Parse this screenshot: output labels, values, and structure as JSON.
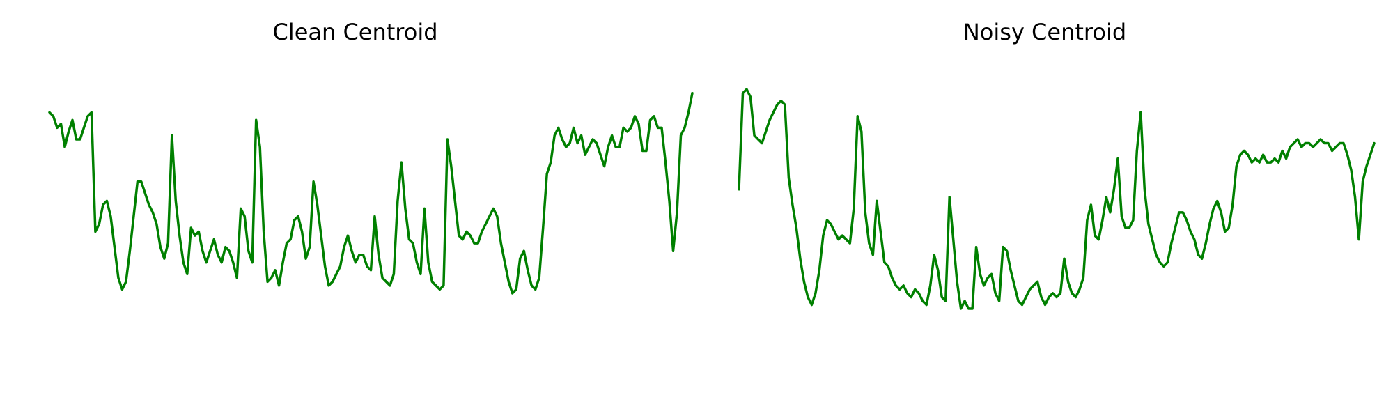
{
  "chart_data": [
    {
      "type": "line",
      "title": "Clean Centroid",
      "xlabel": "",
      "ylabel": "",
      "grid": false,
      "axes_visible": false,
      "color": "#008000",
      "xlim": [
        0,
        160
      ],
      "ylim": [
        0.18,
        1.0
      ],
      "y": [
        0.88,
        0.87,
        0.84,
        0.85,
        0.79,
        0.83,
        0.86,
        0.81,
        0.81,
        0.84,
        0.87,
        0.88,
        0.57,
        0.59,
        0.64,
        0.65,
        0.61,
        0.53,
        0.45,
        0.42,
        0.44,
        0.52,
        0.61,
        0.7,
        0.7,
        0.67,
        0.64,
        0.62,
        0.59,
        0.53,
        0.5,
        0.54,
        0.82,
        0.65,
        0.56,
        0.49,
        0.46,
        0.58,
        0.56,
        0.57,
        0.52,
        0.49,
        0.52,
        0.55,
        0.51,
        0.49,
        0.53,
        0.52,
        0.49,
        0.45,
        0.63,
        0.61,
        0.52,
        0.49,
        0.86,
        0.79,
        0.57,
        0.44,
        0.45,
        0.47,
        0.43,
        0.49,
        0.54,
        0.55,
        0.6,
        0.61,
        0.57,
        0.5,
        0.53,
        0.7,
        0.64,
        0.56,
        0.48,
        0.43,
        0.44,
        0.46,
        0.48,
        0.53,
        0.56,
        0.52,
        0.49,
        0.51,
        0.51,
        0.48,
        0.47,
        0.61,
        0.51,
        0.45,
        0.44,
        0.43,
        0.46,
        0.65,
        0.75,
        0.63,
        0.55,
        0.54,
        0.49,
        0.46,
        0.63,
        0.49,
        0.44,
        0.43,
        0.42,
        0.43,
        0.81,
        0.74,
        0.65,
        0.56,
        0.55,
        0.57,
        0.56,
        0.54,
        0.54,
        0.57,
        0.59,
        0.61,
        0.63,
        0.61,
        0.54,
        0.49,
        0.44,
        0.41,
        0.42,
        0.5,
        0.52,
        0.47,
        0.43,
        0.42,
        0.45,
        0.58,
        0.72,
        0.75,
        0.82,
        0.84,
        0.81,
        0.79,
        0.8,
        0.84,
        0.8,
        0.82,
        0.77,
        0.79,
        0.81,
        0.8,
        0.77,
        0.74,
        0.79,
        0.82,
        0.79,
        0.79,
        0.84,
        0.83,
        0.84,
        0.87,
        0.85,
        0.78,
        0.78,
        0.86,
        0.87,
        0.84,
        0.84,
        0.75,
        0.65,
        0.52,
        0.62,
        0.82,
        0.84,
        0.88,
        0.93
      ]
    },
    {
      "type": "line",
      "title": "Noisy Centroid",
      "xlabel": "",
      "ylabel": "",
      "grid": false,
      "axes_visible": false,
      "color": "#008000",
      "xlim": [
        0,
        160
      ],
      "ylim": [
        0.18,
        1.0
      ],
      "y": [
        0.68,
        0.93,
        0.94,
        0.92,
        0.82,
        0.81,
        0.8,
        0.83,
        0.86,
        0.88,
        0.9,
        0.91,
        0.9,
        0.71,
        0.64,
        0.58,
        0.5,
        0.44,
        0.4,
        0.38,
        0.41,
        0.47,
        0.56,
        0.6,
        0.59,
        0.57,
        0.55,
        0.56,
        0.55,
        0.54,
        0.63,
        0.87,
        0.83,
        0.62,
        0.54,
        0.51,
        0.65,
        0.57,
        0.49,
        0.48,
        0.45,
        0.43,
        0.42,
        0.43,
        0.41,
        0.4,
        0.42,
        0.41,
        0.39,
        0.38,
        0.43,
        0.51,
        0.47,
        0.4,
        0.39,
        0.66,
        0.55,
        0.44,
        0.37,
        0.39,
        0.37,
        0.37,
        0.53,
        0.46,
        0.43,
        0.45,
        0.46,
        0.41,
        0.39,
        0.53,
        0.52,
        0.47,
        0.43,
        0.39,
        0.38,
        0.4,
        0.42,
        0.43,
        0.44,
        0.4,
        0.38,
        0.4,
        0.41,
        0.4,
        0.41,
        0.5,
        0.44,
        0.41,
        0.4,
        0.42,
        0.45,
        0.6,
        0.64,
        0.56,
        0.55,
        0.6,
        0.66,
        0.62,
        0.68,
        0.76,
        0.61,
        0.58,
        0.58,
        0.6,
        0.78,
        0.88,
        0.68,
        0.59,
        0.55,
        0.51,
        0.49,
        0.48,
        0.49,
        0.54,
        0.58,
        0.62,
        0.62,
        0.6,
        0.57,
        0.55,
        0.51,
        0.5,
        0.54,
        0.59,
        0.63,
        0.65,
        0.62,
        0.57,
        0.58,
        0.64,
        0.74,
        0.77,
        0.78,
        0.77,
        0.75,
        0.76,
        0.75,
        0.77,
        0.75,
        0.75,
        0.76,
        0.75,
        0.78,
        0.76,
        0.79,
        0.8,
        0.81,
        0.79,
        0.8,
        0.8,
        0.79,
        0.8,
        0.81,
        0.8,
        0.8,
        0.78,
        0.79,
        0.8,
        0.8,
        0.77,
        0.73,
        0.66,
        0.55,
        0.7,
        0.74,
        0.77,
        0.8
      ]
    }
  ]
}
